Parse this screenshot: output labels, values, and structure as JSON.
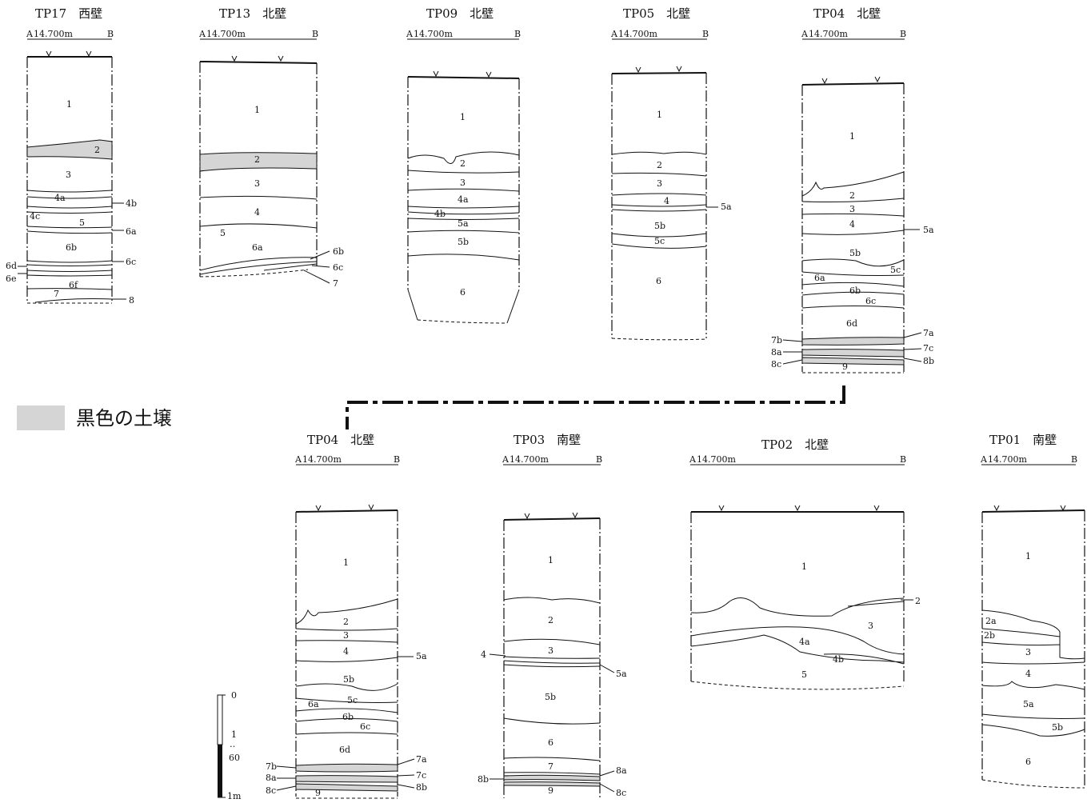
{
  "legend": {
    "label": "黒色の土壌",
    "color": "#d5d5d5"
  },
  "scale": {
    "top": "0",
    "mid1": "1",
    "dots": "‥",
    "mid2": "60",
    "bottom": "1m"
  },
  "sections": [
    {
      "title": "TP17　西壁",
      "datum": "14.700m",
      "a": "A",
      "b": "B",
      "layers": [
        "1",
        "2",
        "3",
        "4a",
        "4b",
        "4c",
        "5",
        "6a",
        "6b",
        "6c",
        "6d",
        "6e",
        "6f",
        "7",
        "8"
      ]
    },
    {
      "title": "TP13　北壁",
      "datum": "14.700m",
      "a": "A",
      "b": "B",
      "layers": [
        "1",
        "2",
        "3",
        "4",
        "5",
        "6a",
        "6b",
        "6c",
        "7"
      ]
    },
    {
      "title": "TP09　北壁",
      "datum": "14.700m",
      "a": "A",
      "b": "B",
      "layers": [
        "1",
        "2",
        "3",
        "4a",
        "4b",
        "5a",
        "5b",
        "6"
      ]
    },
    {
      "title": "TP05　北壁",
      "datum": "14.700m",
      "a": "A",
      "b": "B",
      "layers": [
        "1",
        "2",
        "3",
        "4",
        "5a",
        "5b",
        "5c",
        "6"
      ]
    },
    {
      "title": "TP04　北壁",
      "datum": "14.700m",
      "a": "A",
      "b": "B",
      "layers": [
        "1",
        "2",
        "3",
        "4",
        "5a",
        "5b",
        "5c",
        "6a",
        "6b",
        "6c",
        "6d",
        "7a",
        "7b",
        "7c",
        "8a",
        "8b",
        "8c",
        "9"
      ]
    },
    {
      "title": "TP04　北壁",
      "datum": "14.700m",
      "a": "A",
      "b": "B",
      "layers": [
        "1",
        "2",
        "3",
        "4",
        "5a",
        "5b",
        "5c",
        "6a",
        "6b",
        "6c",
        "6d",
        "7a",
        "7b",
        "7c",
        "8a",
        "8b",
        "8c",
        "9"
      ]
    },
    {
      "title": "TP03　南壁",
      "datum": "14.700m",
      "a": "A",
      "b": "B",
      "layers": [
        "1",
        "2",
        "3",
        "4",
        "5a",
        "5b",
        "6",
        "7",
        "8a",
        "8b",
        "8c",
        "9"
      ]
    },
    {
      "title": "TP02　北壁",
      "datum": "14.700m",
      "a": "A",
      "b": "B",
      "layers": [
        "1",
        "2",
        "3",
        "4a",
        "4b",
        "5"
      ]
    },
    {
      "title": "TP01　南壁",
      "datum": "14.700m",
      "a": "A",
      "b": "B",
      "layers": [
        "1",
        "2a",
        "2b",
        "3",
        "4",
        "5a",
        "5b",
        "6"
      ]
    }
  ]
}
